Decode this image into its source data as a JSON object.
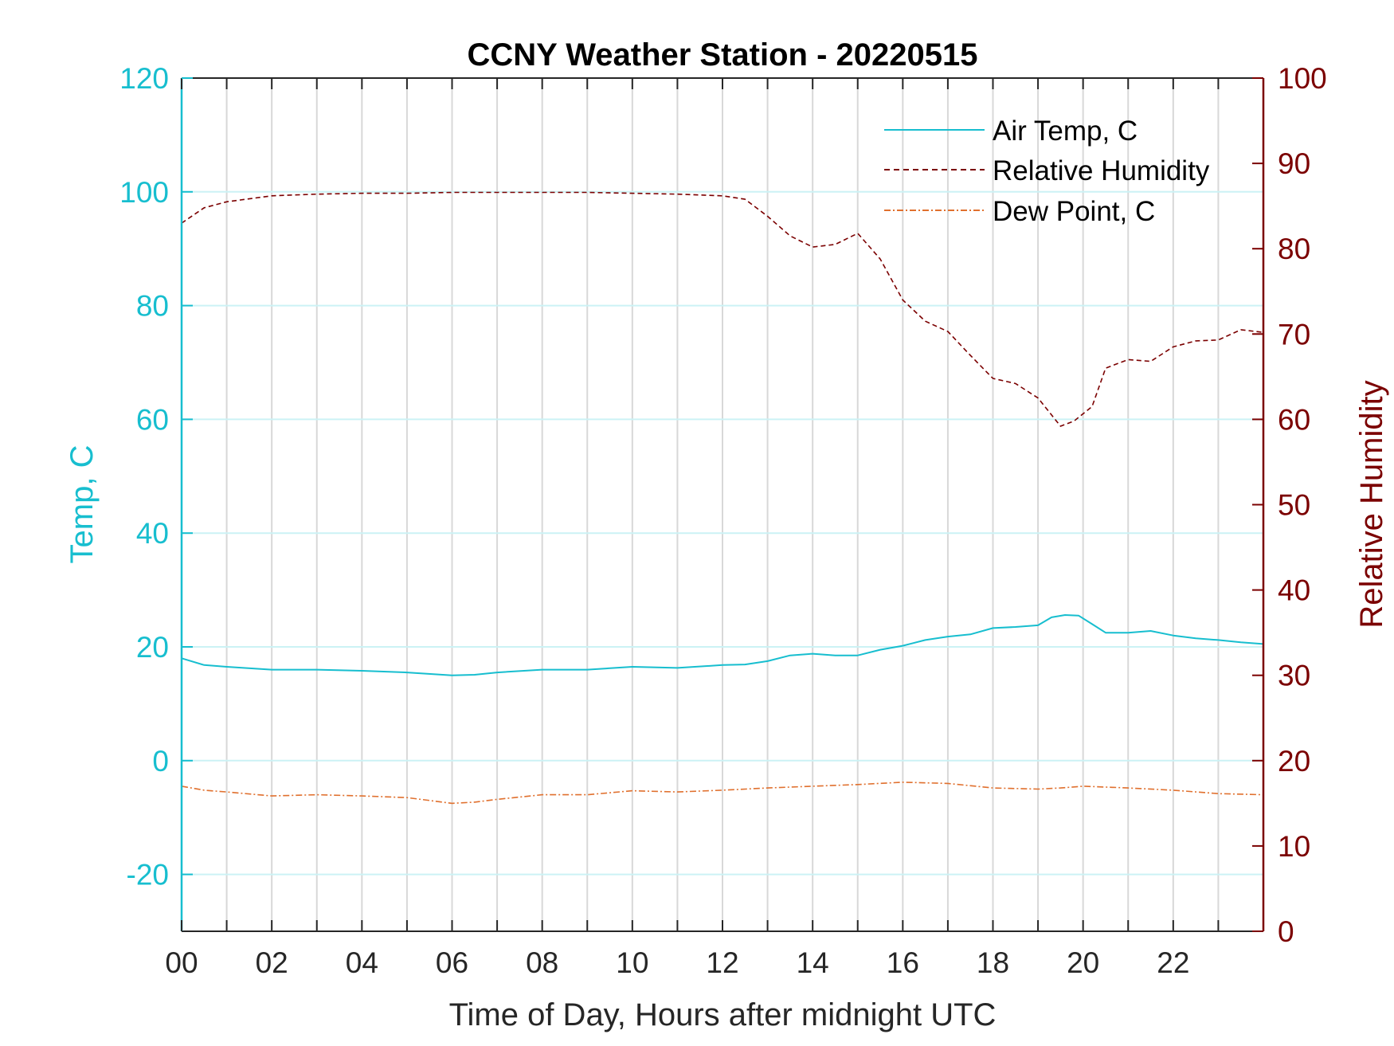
{
  "colors": {
    "air_temp": "#17becf",
    "relative_humidity": "#7b0000",
    "dew_point": "#e0702e",
    "left_axis": "#17becf",
    "right_axis": "#7b0000",
    "grid_vertical": "#d8d8d8",
    "grid_horizontal": "#ccf2f5"
  },
  "chart_data": {
    "type": "line",
    "title": "CCNY Weather Station - 20220515",
    "xlabel": "Time of Day, Hours after midnight UTC",
    "ylabel_left": "Temp, C",
    "ylabel_right": "Relative Humidity",
    "xlim": [
      0,
      24
    ],
    "ylim_left": [
      -30,
      120
    ],
    "ylim_right": [
      0,
      100
    ],
    "x_ticks": [
      0,
      2,
      4,
      6,
      8,
      10,
      12,
      14,
      16,
      18,
      20,
      22
    ],
    "x_tick_labels": [
      "00",
      "02",
      "04",
      "06",
      "08",
      "10",
      "12",
      "14",
      "16",
      "18",
      "20",
      "22"
    ],
    "y_left_ticks": [
      -20,
      0,
      20,
      40,
      60,
      80,
      100,
      120
    ],
    "y_left_tick_labels": [
      "-20",
      "0",
      "20",
      "40",
      "60",
      "80",
      "100",
      "120"
    ],
    "y_right_ticks": [
      0,
      10,
      20,
      30,
      40,
      50,
      60,
      70,
      80,
      90,
      100
    ],
    "y_right_tick_labels": [
      "0",
      "10",
      "20",
      "30",
      "40",
      "50",
      "60",
      "70",
      "80",
      "90",
      "100"
    ],
    "grid": "x-major-every-hour, y-left-major",
    "legend_position": "top-right",
    "series": [
      {
        "name": "Air Temp, C",
        "axis": "left",
        "style": "solid",
        "x": [
          0,
          0.5,
          1,
          2,
          3,
          4,
          5,
          6,
          6.5,
          7,
          8,
          9,
          10,
          11,
          12,
          12.5,
          13,
          13.5,
          14,
          14.5,
          15,
          15.5,
          16,
          16.5,
          17,
          17.5,
          18,
          18.5,
          19,
          19.3,
          19.6,
          19.9,
          20.2,
          20.5,
          21,
          21.5,
          22,
          22.5,
          23,
          23.5,
          24
        ],
        "values": [
          18,
          16.8,
          16.5,
          16,
          16,
          15.8,
          15.5,
          15,
          15.1,
          15.5,
          16,
          16,
          16.5,
          16.3,
          16.8,
          16.9,
          17.5,
          18.5,
          18.8,
          18.5,
          18.5,
          19.5,
          20.2,
          21.2,
          21.8,
          22.2,
          23.3,
          23.5,
          23.8,
          25.2,
          25.6,
          25.5,
          24,
          22.5,
          22.5,
          22.8,
          22,
          21.5,
          21.2,
          20.8,
          20.5
        ]
      },
      {
        "name": "Relative Humidity",
        "axis": "right",
        "style": "dashed",
        "x": [
          0,
          0.5,
          1,
          2,
          3,
          4,
          5,
          6,
          7,
          8,
          9,
          10,
          11,
          12,
          12.5,
          13,
          13.5,
          14,
          14.5,
          15,
          15.5,
          16,
          16.5,
          17,
          17.5,
          18,
          18.5,
          19,
          19.5,
          19.8,
          20.2,
          20.5,
          21,
          21.5,
          22,
          22.5,
          23,
          23.5,
          24
        ],
        "values": [
          83,
          84.8,
          85.5,
          86.2,
          86.4,
          86.5,
          86.5,
          86.6,
          86.6,
          86.6,
          86.6,
          86.5,
          86.4,
          86.2,
          85.8,
          83.8,
          81.5,
          80.2,
          80.5,
          81.8,
          78.8,
          74,
          71.5,
          70.3,
          67.5,
          64.8,
          64.2,
          62.5,
          59.2,
          59.8,
          61.5,
          66,
          67,
          66.8,
          68.5,
          69.2,
          69.3,
          70.5,
          70.2
        ]
      },
      {
        "name": "Dew Point, C",
        "axis": "left",
        "style": "dashdot",
        "x": [
          0,
          0.5,
          1,
          2,
          3,
          4,
          5,
          6,
          6.5,
          7,
          8,
          9,
          10,
          11,
          12,
          13,
          14,
          15,
          16,
          17,
          18,
          19,
          19.5,
          20,
          21,
          22,
          23,
          24
        ],
        "values": [
          -4.5,
          -5.2,
          -5.5,
          -6.2,
          -6,
          -6.2,
          -6.5,
          -7.5,
          -7.3,
          -6.8,
          -6,
          -6,
          -5.3,
          -5.5,
          -5.2,
          -4.8,
          -4.5,
          -4.2,
          -3.8,
          -4,
          -4.8,
          -5,
          -4.8,
          -4.5,
          -4.8,
          -5.2,
          -5.8,
          -6
        ]
      }
    ]
  }
}
